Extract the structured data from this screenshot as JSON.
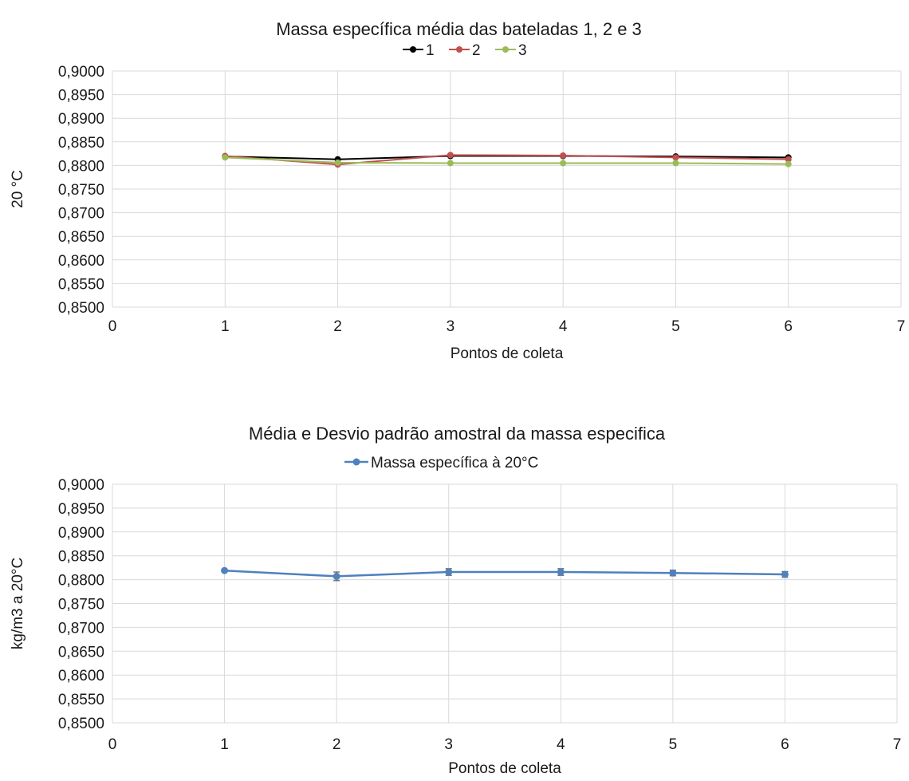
{
  "chart_data": [
    {
      "type": "line",
      "title": "Massa específica média das bateladas 1, 2 e 3",
      "xlabel": "Pontos de coleta",
      "ylabel": "20 °C",
      "xlim": [
        0,
        7
      ],
      "ylim": [
        0.85,
        0.9
      ],
      "x_ticks": [
        "0",
        "1",
        "2",
        "3",
        "4",
        "5",
        "6",
        "7"
      ],
      "y_ticks": [
        "0,8500",
        "0,8550",
        "0,8600",
        "0,8650",
        "0,8700",
        "0,8750",
        "0,8800",
        "0,8850",
        "0,8900",
        "0,8950",
        "0,9000"
      ],
      "grid": true,
      "legend": "top",
      "x": [
        1,
        2,
        3,
        4,
        5,
        6
      ],
      "series": [
        {
          "name": "1",
          "color": "#000000",
          "values": [
            0.8819,
            0.8813,
            0.882,
            0.882,
            0.8819,
            0.8817
          ]
        },
        {
          "name": "2",
          "color": "#c0504d",
          "values": [
            0.882,
            0.8802,
            0.8822,
            0.8821,
            0.8817,
            0.8813
          ]
        },
        {
          "name": "3",
          "color": "#9bbb59",
          "values": [
            0.8817,
            0.8806,
            0.8805,
            0.8805,
            0.8805,
            0.8803
          ]
        }
      ]
    },
    {
      "type": "line",
      "title": "Média e Desvio padrão amostral da massa especifica",
      "xlabel": "Pontos de coleta",
      "ylabel": "kg/m3 a 20°C",
      "xlim": [
        0,
        7
      ],
      "ylim": [
        0.85,
        0.9
      ],
      "x_ticks": [
        "0",
        "1",
        "2",
        "3",
        "4",
        "5",
        "6",
        "7"
      ],
      "y_ticks": [
        "0,8500",
        "0,8550",
        "0,8600",
        "0,8650",
        "0,8700",
        "0,8750",
        "0,8800",
        "0,8850",
        "0,8900",
        "0,8950",
        "0,9000"
      ],
      "grid": true,
      "legend": "top",
      "x": [
        1,
        2,
        3,
        4,
        5,
        6
      ],
      "series": [
        {
          "name": "Massa específica à 20°C",
          "color": "#4f81bd",
          "values": [
            0.8819,
            0.8807,
            0.8816,
            0.8816,
            0.8814,
            0.8811
          ],
          "error": [
            0.0001,
            0.0009,
            0.0007,
            0.0007,
            0.0006,
            0.0006
          ]
        }
      ]
    }
  ]
}
